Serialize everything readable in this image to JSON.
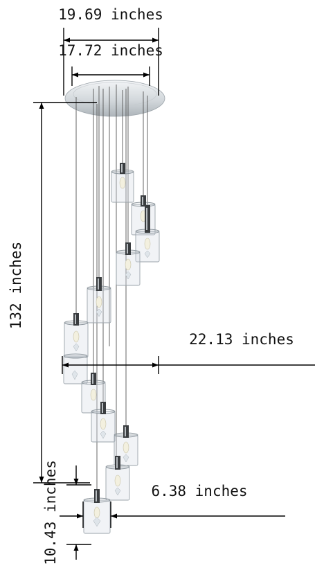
{
  "dimensions": {
    "canopy_diameter": "19.69 inches",
    "canopy_inner": "17.72 inches",
    "overall_height": "132 inches",
    "spread_width": "22.13 inches",
    "pendant_diameter": "6.38 inches",
    "pendant_height": "10.43 inches"
  },
  "colors": {
    "line": "#000000",
    "text": "#111111",
    "chrome": "#d8dde1",
    "glass": "#dfe5ea"
  }
}
